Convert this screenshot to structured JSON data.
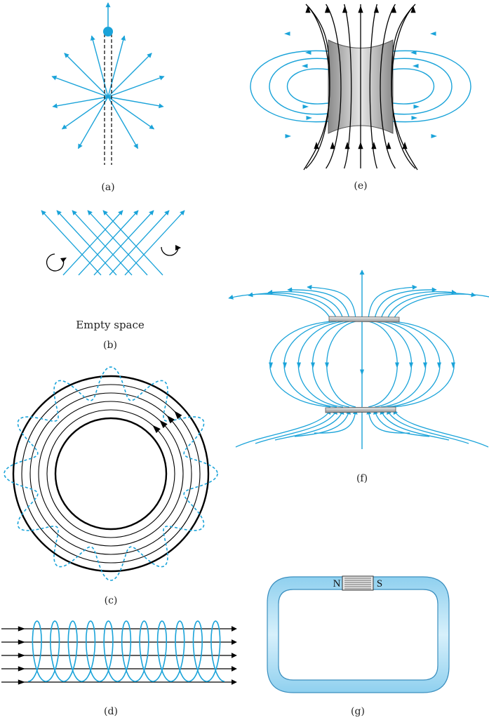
{
  "panels": {
    "a": {
      "caption": "(a)"
    },
    "b": {
      "caption": "(b)",
      "label": "Empty space"
    },
    "c": {
      "caption": "(c)"
    },
    "d": {
      "caption": "(d)"
    },
    "e": {
      "caption": "(e)"
    },
    "f": {
      "caption": "(f)"
    },
    "g": {
      "caption": "(g)",
      "north": "N",
      "south": "S"
    }
  },
  "colors": {
    "field_line": "#1aa3d9",
    "conductor": "#000000",
    "magnet_body": "#a9a9a9",
    "yoke": "#a6d8f0"
  }
}
